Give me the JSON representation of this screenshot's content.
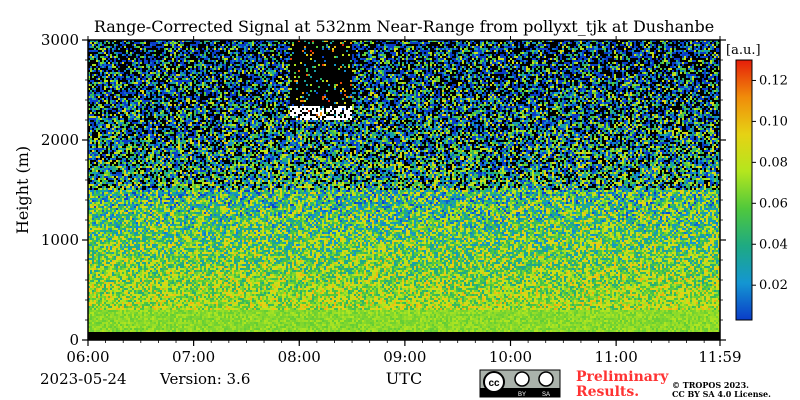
{
  "chart_data": {
    "type": "heatmap",
    "title": "Range-Corrected Signal at 532nm Near-Range from pollyxt_tjk at Dushanbe",
    "xlabel": "UTC",
    "ylabel": "Height (m)",
    "x_ticks": [
      "06:00",
      "07:00",
      "08:00",
      "09:00",
      "10:00",
      "11:00",
      "11:59"
    ],
    "x_range": [
      "06:00",
      "11:59"
    ],
    "y_ticks": [
      0,
      1000,
      2000,
      3000
    ],
    "ylim": [
      0,
      3000
    ],
    "colorbar": {
      "unit_label": "[a.u.]",
      "ticks": [
        0.02,
        0.04,
        0.06,
        0.08,
        0.1,
        0.12
      ],
      "range": [
        0.003,
        0.13
      ],
      "colormap": "jet-like",
      "colors": [
        "#0a3cc8",
        "#1496d2",
        "#1eaa82",
        "#50c83c",
        "#b4e61e",
        "#e6d214",
        "#f08c0a",
        "#e61e0a"
      ]
    },
    "features": {
      "near_surface_high_signal_height_m": [
        80,
        300
      ],
      "missing_data_below_m": 80,
      "cloud_time": [
        "07:55",
        "08:30"
      ],
      "cloud_height_m": [
        2200,
        3000
      ]
    }
  },
  "footer": {
    "date": "2023-05-24",
    "version": "Version: 3.6",
    "license_badge": "cc BY SA",
    "preliminary_line1": "Preliminary",
    "preliminary_line2": "Results.",
    "copyright_line1": "© TROPOS 2023.",
    "copyright_line2": "CC BY SA 4.0 License."
  }
}
